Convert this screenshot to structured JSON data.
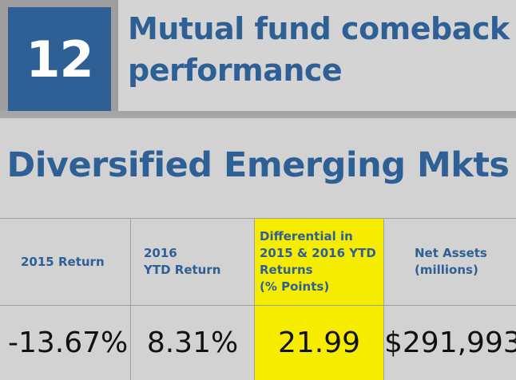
{
  "rank": "12",
  "title": "Mutual fund comeback performance",
  "category": "Diversified Emerging Mkts",
  "columns": [
    {
      "header": "2015 Return",
      "value": "-13.67%"
    },
    {
      "header": "2016\nYTD Return",
      "value": "8.31%"
    },
    {
      "header": "Differential in\n2015 & 2016 YTD\nReturns\n(% Points)",
      "value": "21.99"
    },
    {
      "header": "Net Assets\n(millions)",
      "value": "$291,993"
    }
  ],
  "colors": {
    "accent": "#2e6096",
    "highlight": "#f5ec00",
    "background": "#d2d2d2"
  }
}
